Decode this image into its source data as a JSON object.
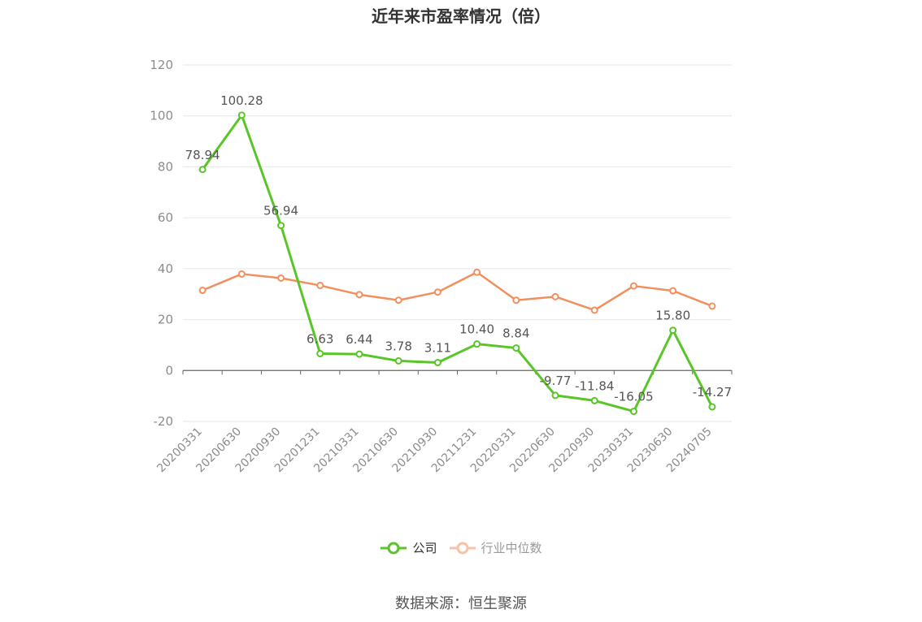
{
  "title": "近年来市盈率情况（倍）",
  "source": "数据来源：恒生聚源",
  "colors": {
    "company": "#5ac528",
    "industry": "#f28f5e",
    "industry_legend": "#f7c2a8",
    "axis": "#666666",
    "grid": "#e6e6ee",
    "tick_text": "#8c8c8c",
    "label_text": "#555555"
  },
  "legend": [
    {
      "name": "公司",
      "key": "company"
    },
    {
      "name": "行业中位数",
      "key": "industry"
    }
  ],
  "chart_data": {
    "type": "line",
    "title": "近年来市盈率情况（倍）",
    "xlabel": "",
    "ylabel": "",
    "ylim": [
      -20,
      120
    ],
    "yticks": [
      -20,
      0,
      20,
      40,
      60,
      80,
      100,
      120
    ],
    "grid": true,
    "legend_position": "bottom-center",
    "categories": [
      "20200331",
      "20200630",
      "20200930",
      "20201231",
      "20210331",
      "20210630",
      "20210930",
      "20211231",
      "20220331",
      "20220630",
      "20220930",
      "20230331",
      "20230630",
      "20240705"
    ],
    "series": [
      {
        "name": "公司",
        "values": [
          78.94,
          100.28,
          56.94,
          6.63,
          6.44,
          3.78,
          3.11,
          10.4,
          8.84,
          -9.77,
          -11.84,
          -16.05,
          15.8,
          -14.27
        ],
        "labels": [
          "78.94",
          "100.28",
          "56.94",
          "6.63",
          "6.44",
          "3.78",
          "3.11",
          "10.40",
          "8.84",
          "-9.77",
          "-11.84",
          "-16.05",
          "15.80",
          "-14.27"
        ],
        "show_labels": true
      },
      {
        "name": "行业中位数",
        "values": [
          31.5,
          37.9,
          36.3,
          33.4,
          29.8,
          27.6,
          30.8,
          38.6,
          27.6,
          29.0,
          23.7,
          33.2,
          31.3,
          25.3
        ],
        "show_labels": false
      }
    ]
  }
}
